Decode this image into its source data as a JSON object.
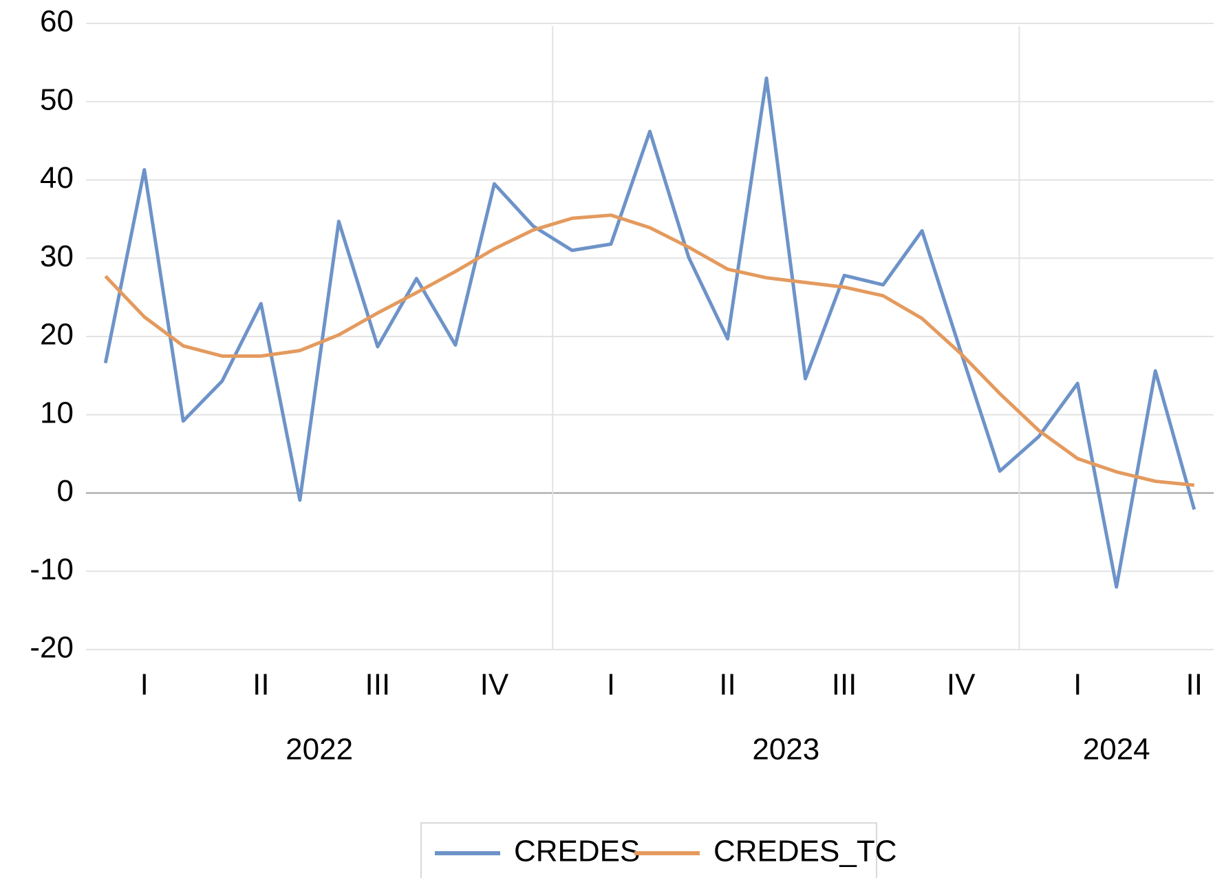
{
  "chart_data": {
    "type": "line",
    "categories": [
      null,
      "I",
      null,
      null,
      "II",
      null,
      null,
      "III",
      null,
      null,
      "IV",
      null,
      null,
      "I",
      null,
      null,
      "II",
      null,
      null,
      "III",
      null,
      null,
      "IV",
      null,
      null,
      "I",
      null,
      null,
      "II"
    ],
    "years": [
      "2022",
      "2023",
      "2024"
    ],
    "year_spans": [
      12,
      12,
      5
    ],
    "series": [
      {
        "name": "CREDES",
        "color": "#6d93c8",
        "values": [
          16.6,
          41.3,
          9.2,
          14.3,
          24.2,
          -0.9,
          34.7,
          18.7,
          27.4,
          18.9,
          39.5,
          34.1,
          31.0,
          31.8,
          46.2,
          30.1,
          19.7,
          53.0,
          14.6,
          27.8,
          26.6,
          33.5,
          18.0,
          2.8,
          7.2,
          14.0,
          -12.0,
          15.6,
          -2.1
        ]
      },
      {
        "name": "CREDES_TC",
        "color": "#e49a5e",
        "values": [
          27.7,
          22.5,
          18.8,
          17.5,
          17.5,
          18.2,
          20.2,
          23.0,
          25.6,
          28.3,
          31.2,
          33.6,
          35.1,
          35.5,
          33.9,
          31.4,
          28.6,
          27.5,
          26.9,
          26.3,
          25.2,
          22.3,
          17.8,
          12.7,
          8.0,
          4.4,
          2.7,
          1.5,
          1.0
        ]
      }
    ],
    "ylim": [
      -20,
      60
    ],
    "yticks": [
      -20,
      -10,
      0,
      10,
      20,
      30,
      40,
      50,
      60
    ],
    "grid": true,
    "legend": "bottom"
  }
}
